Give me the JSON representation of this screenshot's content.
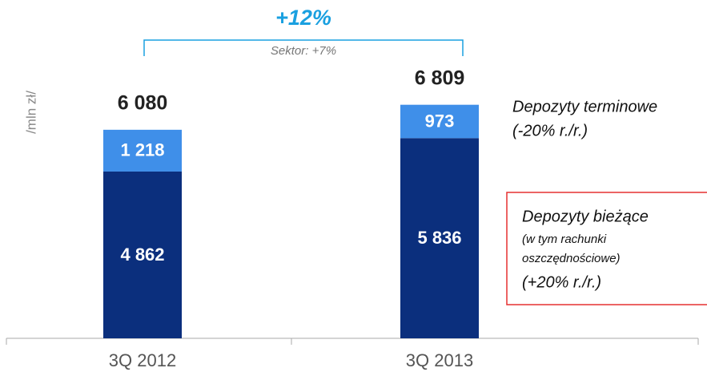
{
  "chart_data": {
    "type": "stacked_bar",
    "y_label": "/mln zł/",
    "categories": [
      "3Q 2012",
      "3Q 2013"
    ],
    "series": [
      {
        "name": "Depozyty bieżące",
        "color": "#0b2f7d",
        "values": [
          4862,
          5836
        ],
        "value_labels": [
          "4 862",
          "5 836"
        ]
      },
      {
        "name": "Depozyty terminowe",
        "color": "#3f8fe9",
        "values": [
          1218,
          973
        ],
        "value_labels": [
          "1 218",
          "973"
        ]
      }
    ],
    "totals": {
      "values": [
        6080,
        6809
      ],
      "value_labels": [
        "6 080",
        "6 809"
      ]
    },
    "growth": "+12%",
    "sector_note": "Sektor: +7%",
    "legend_notes": {
      "terminowe": [
        "(-20% r./r.)"
      ],
      "biezace": [
        "(w tym rachunki",
        "oszczędnościowe)",
        "(+20% r./r.)"
      ]
    },
    "ylim": [
      0,
      7000
    ]
  }
}
